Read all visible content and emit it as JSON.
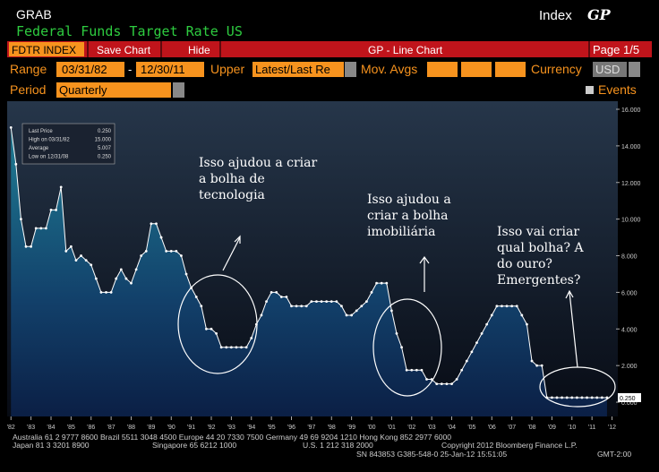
{
  "header": {
    "ticker": "GRAB",
    "title": "Federal Funds Target Rate US",
    "index": "Index",
    "gp": "GP"
  },
  "toolbar": {
    "security": "FDTR INDEX",
    "save": "Save Chart",
    "hide": "Hide",
    "chart_type": "GP - Line Chart",
    "page": "Page 1/5"
  },
  "controls": {
    "range_label": "Range",
    "start": "03/31/82",
    "dash": "-",
    "end": "12/30/11",
    "upper_label": "Upper",
    "upper": "Latest/Last Re",
    "mov_avgs": "Mov. Avgs",
    "currency_label": "Currency",
    "currency": "USD",
    "period_label": "Period",
    "period": "Quarterly",
    "events": "Events"
  },
  "chart_data": {
    "type": "line",
    "color": "#ffffff",
    "x": [
      1982,
      1982.25,
      1982.5,
      1982.75,
      1983,
      1983.25,
      1983.5,
      1983.75,
      1984,
      1984.25,
      1984.5,
      1984.75,
      1985,
      1985.25,
      1985.5,
      1985.75,
      1986,
      1986.25,
      1986.5,
      1986.75,
      1987,
      1987.25,
      1987.5,
      1987.75,
      1988,
      1988.25,
      1988.5,
      1988.75,
      1989,
      1989.25,
      1989.5,
      1989.75,
      1990,
      1990.25,
      1990.5,
      1990.75,
      1991,
      1991.25,
      1991.5,
      1991.75,
      1992,
      1992.25,
      1992.5,
      1992.75,
      1993,
      1993.25,
      1993.5,
      1993.75,
      1994,
      1994.25,
      1994.5,
      1994.75,
      1995,
      1995.25,
      1995.5,
      1995.75,
      1996,
      1996.25,
      1996.5,
      1996.75,
      1997,
      1997.25,
      1997.5,
      1997.75,
      1998,
      1998.25,
      1998.5,
      1998.75,
      1999,
      1999.25,
      1999.5,
      1999.75,
      2000,
      2000.25,
      2000.5,
      2000.75,
      2001,
      2001.25,
      2001.5,
      2001.75,
      2002,
      2002.25,
      2002.5,
      2002.75,
      2003,
      2003.25,
      2003.5,
      2003.75,
      2004,
      2004.25,
      2004.5,
      2004.75,
      2005,
      2005.25,
      2005.5,
      2005.75,
      2006,
      2006.25,
      2006.5,
      2006.75,
      2007,
      2007.25,
      2007.5,
      2007.75,
      2008,
      2008.25,
      2008.5,
      2008.75,
      2009,
      2009.25,
      2009.5,
      2009.75,
      2010,
      2010.25,
      2010.5,
      2010.75,
      2011,
      2011.25,
      2011.5,
      2011.75
    ],
    "values": [
      15,
      13,
      10,
      8.5,
      8.5,
      9.5,
      9.5,
      9.5,
      10.5,
      10.5,
      11.75,
      8.25,
      8.5,
      7.75,
      8,
      7.75,
      7.5,
      6.75,
      6,
      6,
      6,
      6.75,
      7.25,
      6.75,
      6.5,
      7.25,
      8,
      8.25,
      9.75,
      9.75,
      9,
      8.25,
      8.25,
      8.25,
      8,
      7,
      6.25,
      5.75,
      5.25,
      4,
      4,
      3.75,
      3,
      3,
      3,
      3,
      3,
      3,
      3.5,
      4.25,
      4.75,
      5.5,
      6,
      6,
      5.75,
      5.75,
      5.25,
      5.25,
      5.25,
      5.25,
      5.5,
      5.5,
      5.5,
      5.5,
      5.5,
      5.5,
      5.25,
      4.75,
      4.75,
      5,
      5.25,
      5.5,
      6,
      6.5,
      6.5,
      6.5,
      5,
      3.75,
      3,
      1.75,
      1.75,
      1.75,
      1.75,
      1.25,
      1.25,
      1,
      1,
      1,
      1,
      1.25,
      1.75,
      2.25,
      2.75,
      3.25,
      3.75,
      4.25,
      4.75,
      5.25,
      5.25,
      5.25,
      5.25,
      5.25,
      4.75,
      4.25,
      2.25,
      2,
      2,
      0.25,
      0.25,
      0.25,
      0.25,
      0.25,
      0.25,
      0.25,
      0.25,
      0.25,
      0.25,
      0.25,
      0.25,
      0.25
    ],
    "xlim": [
      1981.9,
      2012.2
    ],
    "xticks": [
      {
        "value": 1982,
        "label": "'82"
      },
      {
        "value": 1983,
        "label": "'83"
      },
      {
        "value": 1984,
        "label": "'84"
      },
      {
        "value": 1985,
        "label": "'85"
      },
      {
        "value": 1986,
        "label": "'86"
      },
      {
        "value": 1987,
        "label": "'87"
      },
      {
        "value": 1988,
        "label": "'88"
      },
      {
        "value": 1989,
        "label": "'89"
      },
      {
        "value": 1990,
        "label": "'90"
      },
      {
        "value": 1991,
        "label": "'91"
      },
      {
        "value": 1992,
        "label": "'92"
      },
      {
        "value": 1993,
        "label": "'93"
      },
      {
        "value": 1994,
        "label": "'94"
      },
      {
        "value": 1995,
        "label": "'95"
      },
      {
        "value": 1996,
        "label": "'96"
      },
      {
        "value": 1997,
        "label": "'97"
      },
      {
        "value": 1998,
        "label": "'98"
      },
      {
        "value": 1999,
        "label": "'99"
      },
      {
        "value": 2000,
        "label": "'00"
      },
      {
        "value": 2001,
        "label": "'01"
      },
      {
        "value": 2002,
        "label": "'02"
      },
      {
        "value": 2003,
        "label": "'03"
      },
      {
        "value": 2004,
        "label": "'04"
      },
      {
        "value": 2005,
        "label": "'05"
      },
      {
        "value": 2006,
        "label": "'06"
      },
      {
        "value": 2007,
        "label": "'07"
      },
      {
        "value": 2008,
        "label": "'08"
      },
      {
        "value": 2009,
        "label": "'09"
      },
      {
        "value": 2010,
        "label": "'10"
      },
      {
        "value": 2011,
        "label": "'11"
      },
      {
        "value": 2012,
        "label": "'12"
      }
    ],
    "ylim": [
      -0.78,
      16.44
    ],
    "yticks": [
      {
        "value": 0,
        "label": "0.000"
      },
      {
        "value": 2,
        "label": "2.000"
      },
      {
        "value": 4,
        "label": "4.000"
      },
      {
        "value": 6,
        "label": "6.000"
      },
      {
        "value": 8,
        "label": "8.000"
      },
      {
        "value": 10,
        "label": "10.000"
      },
      {
        "value": 12,
        "label": "12.000"
      },
      {
        "value": 14,
        "label": "14.000"
      },
      {
        "value": 16,
        "label": "16.000"
      }
    ],
    "stats": [
      {
        "label": "Last Price",
        "value": "0.250"
      },
      {
        "label": "High on 03/31/82",
        "value": "15.000"
      },
      {
        "label": "Average",
        "value": "5.007"
      },
      {
        "label": "Low on 12/31/08",
        "value": "0.250"
      }
    ],
    "last_price_tag": "0.250",
    "annotations": [
      {
        "lines": [
          "Isso ajudou a criar",
          "a bolha de",
          "tecnologia"
        ]
      },
      {
        "lines": [
          "Isso ajudou a",
          "criar a bolha",
          "imobiliária"
        ]
      },
      {
        "lines": [
          "Isso vai criar",
          "qual bolha? A",
          "do ouro?",
          "Emergentes?"
        ]
      }
    ]
  },
  "footer": [
    "Australia 61 2 9777 8600 Brazil 5511 3048 4500 Europe 44 20 7330 7500 Germany 49 69 9204 1210 Hong Kong 852 2977 6000",
    "Japan 81 3 3201 8900",
    "Singapore 65 6212 1000",
    "U.S. 1 212 318 2000",
    "Copyright 2012 Bloomberg Finance L.P.",
    "SN 843853 G385-548-0 25-Jan-12 15:51:05",
    "GMT-2:00"
  ]
}
